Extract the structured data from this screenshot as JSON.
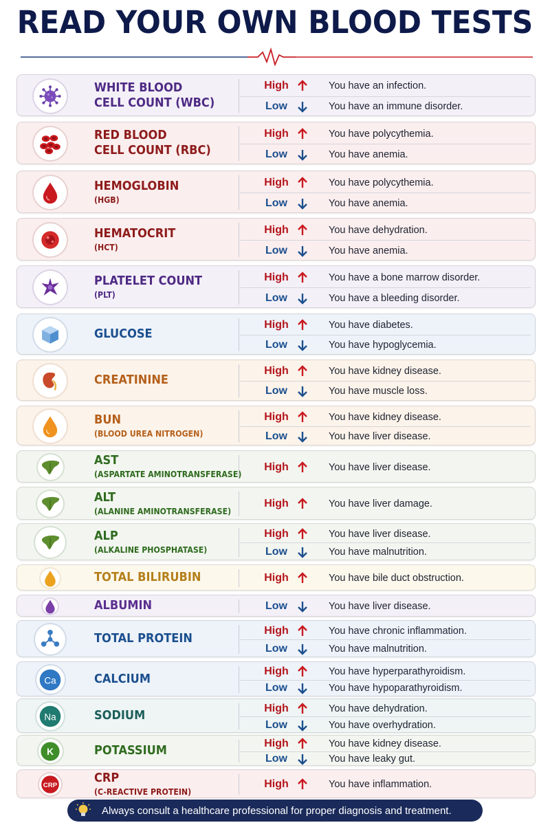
{
  "title": "READ YOUR OWN BLOOD TESTS",
  "level_labels": {
    "high": "High",
    "low": "Low"
  },
  "tests": [
    {
      "key": "wbc",
      "name_lines": [
        "WHITE BLOOD",
        "CELL COUNT (WBC)"
      ],
      "sub": "",
      "icon": "virus-icon",
      "color": "#4e2a84",
      "bg": "#f4f0f8",
      "results": [
        {
          "level": "high",
          "text": "You have an infection."
        },
        {
          "level": "low",
          "text": "You have an immune disorder."
        }
      ]
    },
    {
      "key": "rbc",
      "name_lines": [
        "RED BLOOD",
        "CELL COUNT (RBC)"
      ],
      "sub": "",
      "icon": "red-blood-cells-icon",
      "color": "#8e1b1b",
      "bg": "#fbeeee",
      "results": [
        {
          "level": "high",
          "text": "You have polycythemia."
        },
        {
          "level": "low",
          "text": "You have anemia."
        }
      ]
    },
    {
      "key": "hgb",
      "name_lines": [
        "HEMOGLOBIN"
      ],
      "sub": "(HGB)",
      "icon": "blood-drop-icon",
      "color": "#8e1b1b",
      "bg": "#fbeeee",
      "results": [
        {
          "level": "high",
          "text": "You have polycythemia."
        },
        {
          "level": "low",
          "text": "You have anemia."
        }
      ]
    },
    {
      "key": "hct",
      "name_lines": [
        "HEMATOCRIT"
      ],
      "sub": "(HCT)",
      "icon": "blood-cell-icon",
      "color": "#8e1b1b",
      "bg": "#fbeeee",
      "results": [
        {
          "level": "high",
          "text": "You have dehydration."
        },
        {
          "level": "low",
          "text": "You have anemia."
        }
      ]
    },
    {
      "key": "plt",
      "name_lines": [
        "PLATELET COUNT"
      ],
      "sub": "(PLT)",
      "icon": "platelet-icon",
      "color": "#4e2a84",
      "bg": "#f4f0f8",
      "results": [
        {
          "level": "high",
          "text": "You have a bone marrow disorder."
        },
        {
          "level": "low",
          "text": "You have a bleeding disorder."
        }
      ]
    },
    {
      "key": "glucose",
      "name_lines": [
        "GLUCOSE"
      ],
      "sub": "",
      "icon": "sugar-cube-icon",
      "color": "#1b4f8e",
      "bg": "#eef3fa",
      "results": [
        {
          "level": "high",
          "text": "You have diabetes."
        },
        {
          "level": "low",
          "text": "You have hypoglycemia."
        }
      ]
    },
    {
      "key": "creatinine",
      "name_lines": [
        "CREATININE"
      ],
      "sub": "",
      "icon": "kidney-icon",
      "color": "#b5601b",
      "bg": "#fcf3ea",
      "results": [
        {
          "level": "high",
          "text": "You have kidney disease."
        },
        {
          "level": "low",
          "text": "You have muscle loss."
        }
      ]
    },
    {
      "key": "bun",
      "name_lines": [
        "BUN"
      ],
      "sub": "(BLOOD UREA NITROGEN)",
      "icon": "orange-drop-icon",
      "color": "#b5601b",
      "bg": "#fcf3ea",
      "results": [
        {
          "level": "high",
          "text": "You have kidney disease."
        },
        {
          "level": "low",
          "text": "You have liver disease."
        }
      ]
    },
    {
      "key": "ast",
      "name_lines": [
        "AST"
      ],
      "sub": "(ASPARTATE AMINOTRANSFERASE)",
      "icon": "liver-icon",
      "color": "#2f6b1f",
      "bg": "#f3f6f0",
      "results": [
        {
          "level": "high",
          "text": "You have liver disease."
        }
      ]
    },
    {
      "key": "alt",
      "name_lines": [
        "ALT"
      ],
      "sub": "(ALANINE AMINOTRANSFERASE)",
      "icon": "liver-icon",
      "color": "#2f6b1f",
      "bg": "#f3f6f0",
      "results": [
        {
          "level": "high",
          "text": "You have liver damage."
        }
      ]
    },
    {
      "key": "alp",
      "name_lines": [
        "ALP"
      ],
      "sub": "(ALKALINE PHOSPHATASE)",
      "icon": "liver-icon",
      "color": "#2f6b1f",
      "bg": "#f3f6f0",
      "results": [
        {
          "level": "high",
          "text": "You have liver disease."
        },
        {
          "level": "low",
          "text": "You have malnutrition."
        }
      ]
    },
    {
      "key": "bilirubin",
      "name_lines": [
        "TOTAL BILIRUBIN"
      ],
      "sub": "",
      "icon": "yellow-drop-icon",
      "color": "#b5801b",
      "bg": "#fdf8ec",
      "results": [
        {
          "level": "high",
          "text": "You have bile duct obstruction."
        }
      ]
    },
    {
      "key": "albumin",
      "name_lines": [
        "ALBUMIN"
      ],
      "sub": "",
      "icon": "purple-drop-icon",
      "color": "#5a2f8e",
      "bg": "#f4f0f8",
      "results": [
        {
          "level": "low",
          "text": "You have liver disease."
        }
      ]
    },
    {
      "key": "protein",
      "name_lines": [
        "TOTAL PROTEIN"
      ],
      "sub": "",
      "icon": "molecule-icon",
      "color": "#1b4f8e",
      "bg": "#eef3fa",
      "results": [
        {
          "level": "high",
          "text": "You have chronic inflammation."
        },
        {
          "level": "low",
          "text": "You have malnutrition."
        }
      ]
    },
    {
      "key": "calcium",
      "name_lines": [
        "CALCIUM"
      ],
      "sub": "",
      "icon": "calcium-icon",
      "badge": "Ca",
      "color": "#1b4f8e",
      "bg": "#eef3fa",
      "results": [
        {
          "level": "high",
          "text": "You have hyperparathyroidism."
        },
        {
          "level": "low",
          "text": "You have hypoparathyroidism."
        }
      ]
    },
    {
      "key": "sodium",
      "name_lines": [
        "SODIUM"
      ],
      "sub": "",
      "icon": "sodium-icon",
      "badge": "Na",
      "color": "#1b5e5a",
      "bg": "#eef5f4",
      "results": [
        {
          "level": "high",
          "text": "You have dehydration."
        },
        {
          "level": "low",
          "text": "You have overhydration."
        }
      ]
    },
    {
      "key": "potassium",
      "name_lines": [
        "POTASSIUM"
      ],
      "sub": "",
      "icon": "potassium-icon",
      "badge": "K",
      "color": "#2f6b1f",
      "bg": "#f3f6f0",
      "results": [
        {
          "level": "high",
          "text": "You have kidney disease."
        },
        {
          "level": "low",
          "text": "You have leaky gut."
        }
      ]
    },
    {
      "key": "crp",
      "name_lines": [
        "CRP"
      ],
      "sub": "(C-REACTIVE PROTEIN)",
      "icon": "crp-icon",
      "badge": "CRP",
      "color": "#8e1b1b",
      "bg": "#fbeeee",
      "results": [
        {
          "level": "high",
          "text": "You have inflammation."
        }
      ]
    }
  ],
  "footer": "Always consult a healthcare professional for proper diagnosis and treatment."
}
